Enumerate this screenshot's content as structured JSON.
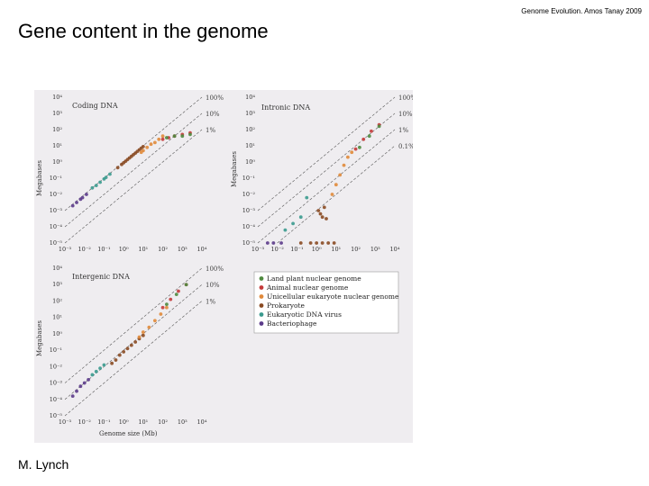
{
  "header": {
    "credit": "Genome Evolution. Amos Tanay 2009"
  },
  "slide": {
    "title": "Gene content in the genome",
    "author": "M. Lynch"
  },
  "chart_data": [
    {
      "type": "scatter",
      "title": "Coding DNA",
      "xlabel": "",
      "ylabel": "Megabases",
      "x_scale": "log",
      "y_scale": "log",
      "xlim": [
        -3,
        4
      ],
      "ylim": [
        -5,
        4
      ],
      "x_ticks": [
        "10⁻³",
        "10⁻²",
        "10⁻¹",
        "10⁰",
        "10¹",
        "10²",
        "10³",
        "10⁴"
      ],
      "y_ticks": [
        "10⁻⁵",
        "10⁻⁴",
        "10⁻³",
        "10⁻²",
        "10⁻¹",
        "10⁰",
        "10¹",
        "10²",
        "10³",
        "10⁴"
      ],
      "reference_lines": [
        {
          "label": "100%",
          "log_fraction": 0
        },
        {
          "label": "10%",
          "log_fraction": -1
        },
        {
          "label": "1%",
          "log_fraction": -2
        }
      ],
      "series": [
        {
          "name": "Bacteriophage",
          "x": [
            -2.6,
            -2.4,
            -2.2,
            -2.1,
            -1.9
          ],
          "y": [
            -2.7,
            -2.5,
            -2.3,
            -2.2,
            -2.0
          ]
        },
        {
          "name": "Eukaryotic DNA virus",
          "x": [
            -1.6,
            -1.4,
            -1.2,
            -1.0,
            -0.9,
            -0.7
          ],
          "y": [
            -1.6,
            -1.45,
            -1.25,
            -1.05,
            -0.95,
            -0.75
          ]
        },
        {
          "name": "Prokaryote",
          "x": [
            -0.3,
            -0.1,
            0.0,
            0.1,
            0.2,
            0.3,
            0.4,
            0.5,
            0.6,
            0.7,
            0.8,
            0.9,
            1.0
          ],
          "y": [
            -0.35,
            -0.15,
            -0.05,
            0.05,
            0.15,
            0.25,
            0.35,
            0.45,
            0.55,
            0.65,
            0.75,
            0.85,
            0.95
          ]
        },
        {
          "name": "Unicellular eukaryote nuclear genome",
          "x": [
            0.9,
            1.0,
            1.2,
            1.4,
            1.6,
            1.8,
            2.0
          ],
          "y": [
            0.6,
            0.7,
            0.9,
            1.1,
            1.2,
            1.4,
            1.6
          ]
        },
        {
          "name": "Animal nuclear genome",
          "x": [
            2.0,
            2.3,
            2.6,
            3.0,
            3.4
          ],
          "y": [
            1.4,
            1.5,
            1.6,
            1.7,
            1.8
          ]
        },
        {
          "name": "Land plant nuclear genome",
          "x": [
            2.2,
            2.6,
            3.0,
            3.4
          ],
          "y": [
            1.5,
            1.6,
            1.6,
            1.7
          ]
        }
      ]
    },
    {
      "type": "scatter",
      "title": "Intronic DNA",
      "xlabel": "",
      "ylabel": "Megabases",
      "x_scale": "log",
      "y_scale": "log",
      "xlim": [
        -3,
        4
      ],
      "ylim": [
        -5,
        4
      ],
      "x_ticks": [
        "10⁻³",
        "10⁻²",
        "10⁻¹",
        "10⁰",
        "10¹",
        "10²",
        "10³",
        "10⁴"
      ],
      "y_ticks": [
        "10⁻⁵",
        "10⁻⁴",
        "10⁻³",
        "10⁻²",
        "10⁻¹",
        "10⁰",
        "10¹",
        "10²",
        "10³",
        "10⁴"
      ],
      "reference_lines": [
        {
          "label": "100%",
          "log_fraction": 0
        },
        {
          "label": "10%",
          "log_fraction": -1
        },
        {
          "label": "1%",
          "log_fraction": -2
        },
        {
          "label": "0.1%",
          "log_fraction": -3
        }
      ],
      "series": [
        {
          "name": "Bacteriophage",
          "x": [
            -2.5,
            -2.2,
            -1.8
          ],
          "y": [
            -5,
            -5,
            -5
          ]
        },
        {
          "name": "Eukaryotic DNA virus",
          "x": [
            -1.6,
            -1.2,
            -0.8,
            -0.5
          ],
          "y": [
            -4.2,
            -3.8,
            -3.4,
            -2.2
          ]
        },
        {
          "name": "Prokaryote",
          "x": [
            -0.8,
            -0.3,
            0.0,
            0.3,
            0.6,
            0.9,
            0.2,
            0.4,
            0.5,
            0.1,
            0.3
          ],
          "y": [
            -5,
            -5,
            -5,
            -5,
            -5,
            -5,
            -3.2,
            -2.8,
            -3.5,
            -3.0,
            -3.4
          ]
        },
        {
          "name": "Unicellular eukaryote nuclear genome",
          "x": [
            0.8,
            1.0,
            1.2,
            1.4,
            1.6,
            1.8
          ],
          "y": [
            -2.0,
            -1.4,
            -0.8,
            -0.2,
            0.3,
            0.6
          ]
        },
        {
          "name": "Animal nuclear genome",
          "x": [
            2.0,
            2.4,
            2.8,
            3.2
          ],
          "y": [
            0.8,
            1.4,
            1.9,
            2.3
          ]
        },
        {
          "name": "Land plant nuclear genome",
          "x": [
            2.2,
            2.7,
            3.2
          ],
          "y": [
            0.9,
            1.6,
            2.2
          ]
        }
      ]
    },
    {
      "type": "scatter",
      "title": "Intergenic DNA",
      "xlabel": "Genome size (Mb)",
      "ylabel": "Megabases",
      "x_scale": "log",
      "y_scale": "log",
      "xlim": [
        -3,
        4
      ],
      "ylim": [
        -5,
        4
      ],
      "x_ticks": [
        "10⁻³",
        "10⁻²",
        "10⁻¹",
        "10⁰",
        "10¹",
        "10²",
        "10³",
        "10⁴"
      ],
      "y_ticks": [
        "10⁻⁵",
        "10⁻⁴",
        "10⁻³",
        "10⁻²",
        "10⁻¹",
        "10⁰",
        "10¹",
        "10²",
        "10³",
        "10⁴"
      ],
      "reference_lines": [
        {
          "label": "100%",
          "log_fraction": 0
        },
        {
          "label": "10%",
          "log_fraction": -1
        },
        {
          "label": "1%",
          "log_fraction": -2
        }
      ],
      "series": [
        {
          "name": "Bacteriophage",
          "x": [
            -2.6,
            -2.4,
            -2.2,
            -2.0,
            -1.8
          ],
          "y": [
            -3.8,
            -3.5,
            -3.2,
            -3.0,
            -2.8
          ]
        },
        {
          "name": "Eukaryotic DNA virus",
          "x": [
            -1.6,
            -1.4,
            -1.2,
            -1.0
          ],
          "y": [
            -2.5,
            -2.3,
            -2.1,
            -1.9
          ]
        },
        {
          "name": "Prokaryote",
          "x": [
            -0.6,
            -0.4,
            -0.2,
            0.0,
            0.2,
            0.4,
            0.6,
            0.8,
            1.0
          ],
          "y": [
            -1.8,
            -1.6,
            -1.3,
            -1.1,
            -0.9,
            -0.7,
            -0.5,
            -0.3,
            -0.1
          ]
        },
        {
          "name": "Unicellular eukaryote nuclear genome",
          "x": [
            0.8,
            1.0,
            1.3,
            1.6,
            1.9,
            2.2
          ],
          "y": [
            -0.2,
            0.1,
            0.4,
            0.8,
            1.2,
            1.6
          ]
        },
        {
          "name": "Animal nuclear genome",
          "x": [
            2.0,
            2.4,
            2.8,
            3.2
          ],
          "y": [
            1.6,
            2.1,
            2.6,
            3.0
          ]
        },
        {
          "name": "Land plant nuclear genome",
          "x": [
            2.2,
            2.7,
            3.2
          ],
          "y": [
            1.8,
            2.4,
            3.0
          ]
        }
      ]
    }
  ],
  "legend": {
    "items": [
      {
        "label": "Land plant nuclear genome",
        "color": "#4e8a3f"
      },
      {
        "label": "Animal nuclear genome",
        "color": "#c43a3a"
      },
      {
        "label": "Unicellular eukaryote nuclear genome",
        "color": "#e0893a"
      },
      {
        "label": "Prokaryote",
        "color": "#8a4a22"
      },
      {
        "label": "Eukaryotic DNA virus",
        "color": "#3a9a8e"
      },
      {
        "label": "Bacteriophage",
        "color": "#5b3a8a"
      }
    ]
  }
}
